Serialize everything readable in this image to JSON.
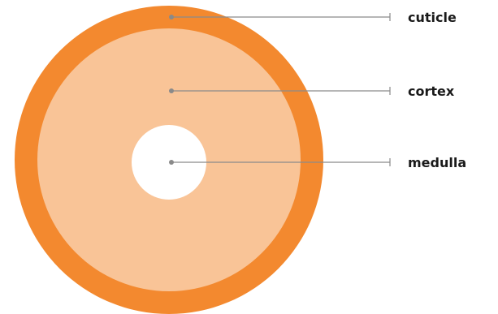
{
  "diagram": {
    "layers": [
      {
        "id": "cuticle",
        "label": "cuticle",
        "color": "#F3892F"
      },
      {
        "id": "cortex",
        "label": "cortex",
        "color": "#F9C497"
      },
      {
        "id": "medulla",
        "label": "medulla",
        "color": "#FFFFFF"
      }
    ],
    "leader_color": "#8A8A8A"
  }
}
